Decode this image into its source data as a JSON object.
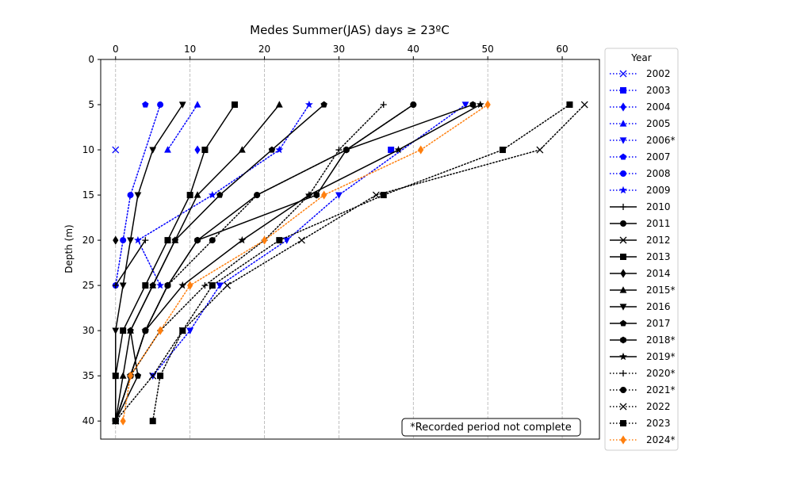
{
  "chart_data": {
    "type": "line",
    "title": "Medes Summer(JAS) days ≥ 23ºC",
    "xlabel": "",
    "ylabel": "Depth (m)",
    "xlim": [
      -2,
      65
    ],
    "ylim": [
      42,
      0
    ],
    "x_axis_position": "top",
    "y_inverted": true,
    "x_ticks": [
      0,
      10,
      20,
      30,
      40,
      50,
      60
    ],
    "y_ticks": [
      0,
      5,
      10,
      15,
      20,
      25,
      30,
      35,
      40
    ],
    "x_grid": true,
    "y_grid": false,
    "legend_title": "Year",
    "legend_position": "outside-right",
    "annotation": "*Recorded period not complete",
    "depths": [
      5,
      10,
      15,
      20,
      25,
      30,
      35,
      40
    ],
    "series": [
      {
        "name": "2002",
        "color": "#0000ff",
        "linestyle": "dotted",
        "marker": "x",
        "x": [
          null,
          0,
          null,
          null,
          null,
          null,
          null,
          null
        ]
      },
      {
        "name": "2003",
        "color": "#0000ff",
        "linestyle": "dotted",
        "marker": "square",
        "x": [
          null,
          37,
          null,
          null,
          null,
          null,
          null,
          null
        ]
      },
      {
        "name": "2004",
        "color": "#0000ff",
        "linestyle": "dotted",
        "marker": "diamond",
        "x": [
          null,
          11,
          null,
          null,
          null,
          null,
          null,
          null
        ]
      },
      {
        "name": "2005",
        "color": "#0000ff",
        "linestyle": "dotted",
        "marker": "triangle-up",
        "x": [
          11,
          7,
          null,
          null,
          null,
          null,
          null,
          null
        ]
      },
      {
        "name": "2006*",
        "color": "#0000ff",
        "linestyle": "dotted",
        "marker": "triangle-down",
        "x": [
          47,
          null,
          30,
          23,
          14,
          10,
          5,
          null
        ]
      },
      {
        "name": "2007",
        "color": "#0000ff",
        "linestyle": "dotted",
        "marker": "pentagon",
        "x": [
          4,
          null,
          null,
          null,
          null,
          null,
          null,
          null
        ]
      },
      {
        "name": "2008",
        "color": "#0000ff",
        "linestyle": "dotted",
        "marker": "circle",
        "x": [
          6,
          null,
          2,
          1,
          0,
          null,
          null,
          null
        ]
      },
      {
        "name": "2009",
        "color": "#0000ff",
        "linestyle": "dotted",
        "marker": "star",
        "x": [
          26,
          22,
          13,
          3,
          6,
          null,
          null,
          null
        ]
      },
      {
        "name": "2010",
        "color": "#000000",
        "linestyle": "solid",
        "marker": "plus",
        "x": [
          null,
          null,
          null,
          4,
          0,
          null,
          null,
          null
        ]
      },
      {
        "name": "2011",
        "color": "#000000",
        "linestyle": "solid",
        "marker": "circle",
        "x": [
          40,
          31,
          19,
          11,
          7,
          4,
          2,
          0
        ]
      },
      {
        "name": "2012",
        "color": "#000000",
        "linestyle": "solid",
        "marker": "x",
        "x": [
          null,
          null,
          null,
          null,
          null,
          null,
          null,
          null
        ]
      },
      {
        "name": "2013",
        "color": "#000000",
        "linestyle": "solid",
        "marker": "square",
        "x": [
          16,
          12,
          10,
          7,
          4,
          1,
          0,
          0
        ]
      },
      {
        "name": "2014",
        "color": "#000000",
        "linestyle": "solid",
        "marker": "diamond",
        "x": [
          null,
          null,
          null,
          0,
          null,
          null,
          null,
          null
        ]
      },
      {
        "name": "2015*",
        "color": "#000000",
        "linestyle": "solid",
        "marker": "triangle-up",
        "x": [
          22,
          17,
          11,
          8,
          5,
          2,
          1,
          0
        ]
      },
      {
        "name": "2016",
        "color": "#000000",
        "linestyle": "solid",
        "marker": "triangle-down",
        "x": [
          9,
          5,
          3,
          2,
          1,
          0,
          0,
          0
        ]
      },
      {
        "name": "2017",
        "color": "#000000",
        "linestyle": "solid",
        "marker": "pentagon",
        "x": [
          28,
          21,
          14,
          8,
          5,
          2,
          3,
          0
        ]
      },
      {
        "name": "2018*",
        "color": "#000000",
        "linestyle": "solid",
        "marker": "hexagon",
        "x": [
          48,
          31,
          27,
          11,
          7,
          4,
          2,
          0
        ]
      },
      {
        "name": "2019*",
        "color": "#000000",
        "linestyle": "solid",
        "marker": "star",
        "x": [
          49,
          38,
          26,
          17,
          9,
          4,
          2,
          0
        ]
      },
      {
        "name": "2020*",
        "color": "#000000",
        "linestyle": "dotted",
        "marker": "plus",
        "x": [
          36,
          30,
          26,
          20,
          12,
          6,
          2,
          0
        ]
      },
      {
        "name": "2021*",
        "color": "#000000",
        "linestyle": "dotted",
        "marker": "circle",
        "x": [
          40,
          31,
          19,
          13,
          7,
          4,
          2,
          0
        ]
      },
      {
        "name": "2022",
        "color": "#000000",
        "linestyle": "dotted",
        "marker": "x",
        "x": [
          63,
          57,
          35,
          25,
          15,
          9,
          5,
          0
        ]
      },
      {
        "name": "2023",
        "color": "#000000",
        "linestyle": "dotted",
        "marker": "square",
        "x": [
          61,
          52,
          36,
          22,
          13,
          9,
          6,
          5
        ]
      },
      {
        "name": "2024*",
        "color": "#ff7f0e",
        "linestyle": "dotted",
        "marker": "diamond",
        "x": [
          50,
          41,
          28,
          20,
          10,
          6,
          2,
          1
        ]
      }
    ]
  }
}
